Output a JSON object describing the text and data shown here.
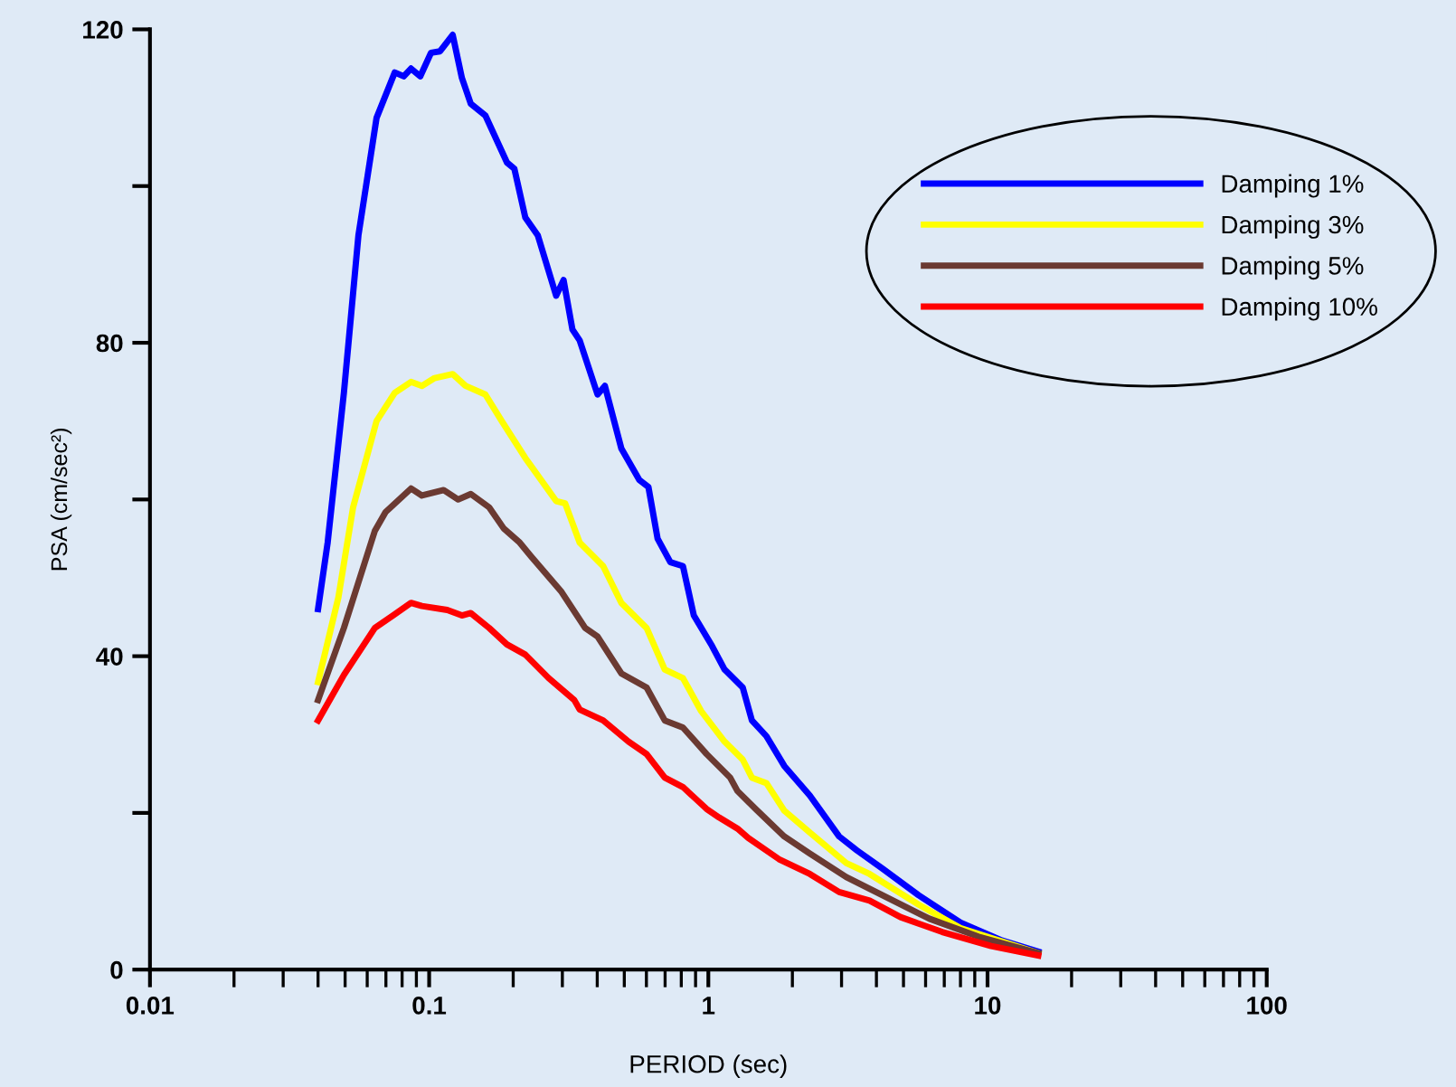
{
  "chart_data": {
    "type": "line",
    "xlabel": "PERIOD (sec)",
    "ylabel": "PSA (cm/sec²)",
    "log": "x",
    "xlim": [
      0.01,
      100
    ],
    "xticks": [
      0.01,
      0.1,
      1,
      10,
      100
    ],
    "ylim": [
      0,
      120
    ],
    "yticks": [
      0,
      {
        "value": 20,
        "label": null
      },
      40,
      {
        "value": 60,
        "label": null
      },
      80,
      {
        "value": 100,
        "label": null
      },
      120
    ],
    "grid": false,
    "legend": "top right",
    "line_style": "solid",
    "marker": "none",
    "series": [
      {
        "name": "Damping 1%",
        "color": "#0000ff",
        "x": [
          0.04,
          0.0433,
          0.0495,
          0.0558,
          0.0648,
          0.0753,
          0.0811,
          0.0861,
          0.0929,
          0.1015,
          0.1094,
          0.1214,
          0.131,
          0.141,
          0.159,
          0.19,
          0.202,
          0.221,
          0.245,
          0.285,
          0.303,
          0.326,
          0.346,
          0.401,
          0.426,
          0.488,
          0.566,
          0.61,
          0.658,
          0.731,
          0.811,
          0.887,
          1.031,
          1.143,
          1.328,
          1.432,
          1.614,
          1.87,
          2.31,
          2.94,
          3.41,
          4.2,
          5.66,
          8.0,
          11.3,
          15.2
        ],
        "values": [
          46,
          54.5,
          73.6,
          93.7,
          108.7,
          114.5,
          114,
          115,
          114,
          117,
          117.2,
          119.3,
          113.8,
          110.5,
          109,
          103,
          102.2,
          96,
          93.7,
          86,
          88,
          81.7,
          80.3,
          73.4,
          74.5,
          66.5,
          62.5,
          61.6,
          55,
          52,
          51.5,
          45.2,
          41.3,
          38.3,
          36,
          31.8,
          29.8,
          26,
          22.2,
          17,
          15.2,
          12.9,
          9.5,
          6,
          3.7,
          2.3
        ]
      },
      {
        "name": "Damping 3%",
        "color": "#ffff00",
        "x": [
          0.04,
          0.0473,
          0.0534,
          0.0648,
          0.0753,
          0.0861,
          0.0942,
          0.1046,
          0.1214,
          0.135,
          0.159,
          0.182,
          0.221,
          0.285,
          0.307,
          0.346,
          0.42,
          0.488,
          0.601,
          0.698,
          0.811,
          0.942,
          1.143,
          1.328,
          1.432,
          1.614,
          1.87,
          2.31,
          3.12,
          3.78,
          5.66,
          8.0,
          15.2
        ],
        "values": [
          36.7,
          47.5,
          59,
          70,
          73.6,
          75,
          74.5,
          75.5,
          76,
          74.5,
          73.4,
          70,
          65.3,
          59.8,
          59.5,
          54.5,
          51.5,
          46.8,
          43.6,
          38.3,
          37.2,
          33,
          29.1,
          26.8,
          24.5,
          23.8,
          20.3,
          17.5,
          13.6,
          12.2,
          8.3,
          5.3,
          2.1
        ]
      },
      {
        "name": "Damping 5%",
        "color": "#6b3a32",
        "x": [
          0.04,
          0.0495,
          0.0639,
          0.0698,
          0.0861,
          0.0942,
          0.1127,
          0.127,
          0.141,
          0.164,
          0.185,
          0.211,
          0.231,
          0.298,
          0.362,
          0.401,
          0.488,
          0.601,
          0.698,
          0.811,
          0.986,
          1.197,
          1.271,
          1.476,
          1.87,
          2.31,
          3.12,
          4.2,
          6.19,
          9.29,
          15.2
        ],
        "values": [
          34.4,
          43.6,
          56,
          58.4,
          61.4,
          60.5,
          61.2,
          60,
          60.7,
          59,
          56.3,
          54.5,
          52.8,
          48.2,
          43.6,
          42.5,
          37.8,
          36,
          31.8,
          30.9,
          27.5,
          24.5,
          22.8,
          20.5,
          17,
          14.8,
          11.8,
          9.5,
          6.5,
          4.2,
          2.1
        ]
      },
      {
        "name": "Damping 10%",
        "color": "#ff0000",
        "x": [
          0.04,
          0.0495,
          0.0639,
          0.0742,
          0.0861,
          0.0942,
          0.1161,
          0.131,
          0.141,
          0.164,
          0.19,
          0.221,
          0.268,
          0.331,
          0.346,
          0.42,
          0.518,
          0.601,
          0.698,
          0.811,
          0.986,
          1.094,
          1.271,
          1.39,
          1.79,
          2.31,
          2.94,
          3.78,
          4.88,
          6.88,
          10.3,
          15.2
        ],
        "values": [
          31.8,
          37.6,
          43.6,
          45.2,
          46.8,
          46.4,
          45.9,
          45.2,
          45.5,
          43.6,
          41.5,
          40.2,
          37.2,
          34.4,
          33.2,
          31.8,
          29.1,
          27.5,
          24.5,
          23.3,
          20.5,
          19.4,
          18,
          16.8,
          14.1,
          12.2,
          9.9,
          8.8,
          6.7,
          4.8,
          3,
          1.8
        ]
      }
    ]
  }
}
